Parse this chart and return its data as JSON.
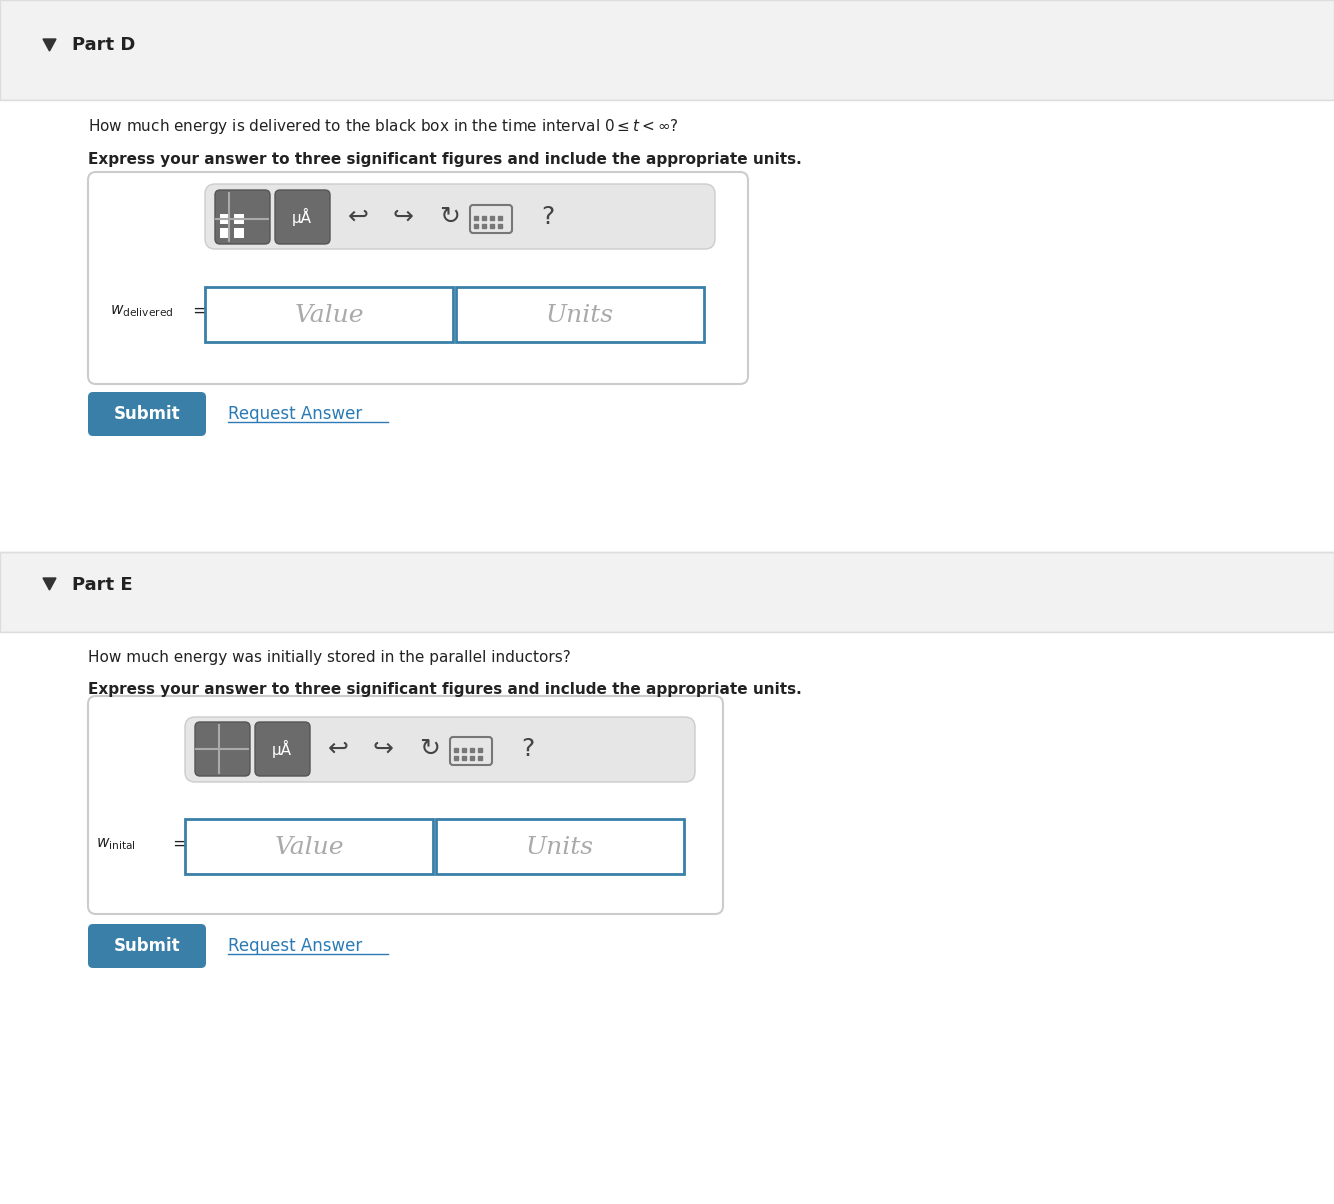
{
  "bg_color": "#ffffff",
  "part_d_label": "Part D",
  "part_e_label": "Part E",
  "question_d": "How much energy is delivered to the black box in the time interval $0 \\leq t < \\infty$?",
  "question_e": "How much energy was initially stored in the parallel inductors?",
  "bold_instruction": "Express your answer to three significant figures and include the appropriate units.",
  "value_placeholder": "Value",
  "units_placeholder": "Units",
  "submit_text": "Submit",
  "request_text": "Request Answer",
  "submit_bg": "#3a7fa8",
  "submit_text_color": "#ffffff",
  "request_color": "#2a7ab5",
  "box_border_color": "#3a7fa8",
  "header_bg": "#f2f2f2",
  "header_border": "#dddddd",
  "toolbar_bg": "#e6e6e6",
  "icon_btn_bg": "#6b6b6b",
  "outer_box_border": "#cccccc",
  "triangle_color": "#333333",
  "part_label_fontsize": 13,
  "question_fontsize": 11,
  "bold_fontsize": 11
}
